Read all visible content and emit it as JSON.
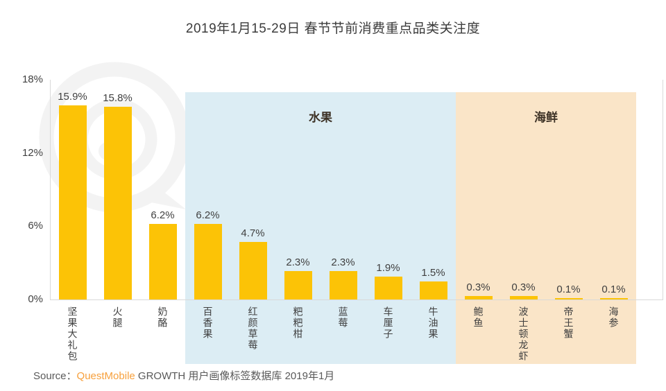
{
  "title": "2019年1月15-29日 春节节前消费重点品类关注度",
  "source": {
    "prefix": "Source：",
    "brand": "QuestMobile",
    "suffix": " GROWTH 用户画像标签数据库 2019年1月"
  },
  "colors": {
    "bar": "#fcc306",
    "fruit_region": "#dcedf4",
    "seafood_region": "#fae5c8",
    "axis": "#d9d9d9",
    "text": "#404040",
    "brand_orange": "#f7a03c",
    "watermark": "#f3f3f3"
  },
  "chart_data": {
    "type": "bar",
    "title": "2019年1月15-29日 春节节前消费重点品类关注度",
    "categories": [
      "坚果大礼包",
      "火腿",
      "奶酪",
      "百香果",
      "红颜草莓",
      "粑粑柑",
      "蓝莓",
      "车厘子",
      "牛油果",
      "鲍鱼",
      "波士顿龙虾",
      "帝王蟹",
      "海参"
    ],
    "values": [
      15.9,
      15.8,
      6.2,
      6.2,
      4.7,
      2.3,
      2.3,
      1.9,
      1.5,
      0.3,
      0.3,
      0.1,
      0.1
    ],
    "value_labels": [
      "15.9%",
      "15.8%",
      "6.2%",
      "6.2%",
      "4.7%",
      "2.3%",
      "2.3%",
      "1.9%",
      "1.5%",
      "0.3%",
      "0.3%",
      "0.1%",
      "0.1%"
    ],
    "xlabel": "",
    "ylabel": "",
    "ylim": [
      0,
      18
    ],
    "yticks": [
      {
        "label": "18%",
        "value": 18
      },
      {
        "label": "12%",
        "value": 12
      },
      {
        "label": "6%",
        "value": 6
      },
      {
        "label": "0%",
        "value": 0
      }
    ],
    "grid": false,
    "legend": null,
    "regions": [
      {
        "label": "水果",
        "start_index": 3,
        "end_index": 8,
        "color": "#dcedf4"
      },
      {
        "label": "海鲜",
        "start_index": 9,
        "end_index": 12,
        "color": "#fae5c8"
      }
    ]
  }
}
